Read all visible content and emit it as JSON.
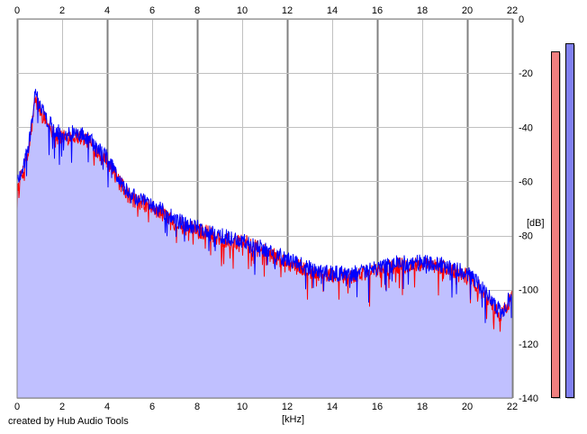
{
  "chart_data": {
    "type": "area",
    "title": "",
    "xlabel": "[kHz]",
    "ylabel": "[dB]",
    "xlim": [
      0,
      22
    ],
    "ylim": [
      -140,
      0
    ],
    "x_ticks": [
      "0",
      "2",
      "4",
      "6",
      "8",
      "10",
      "12",
      "14",
      "16",
      "18",
      "20",
      "22"
    ],
    "y_ticks": [
      "0",
      "-20",
      "-40",
      "-60",
      "-80",
      "-100",
      "-120",
      "-140"
    ],
    "grid": true,
    "legend": "none",
    "colors": {
      "fill": "#c0c0ff",
      "channel_1": "#ff0000",
      "channel_2": "#0000ff",
      "grid_minor": "#c0c0c0",
      "grid_major": "#808080",
      "level_meter_1": "#f08080",
      "level_meter_2": "#8080f0"
    },
    "series": [
      {
        "x": [
          0,
          0.2,
          0.5,
          0.8,
          1.0,
          1.3,
          1.6,
          2.0,
          2.5,
          3.0,
          3.5,
          4.0,
          4.5,
          5.0,
          5.5,
          6.0,
          6.5,
          7.0,
          7.5,
          8.0,
          8.5,
          9.0,
          9.5,
          10.0,
          11.0,
          12.0,
          13.0,
          14.0,
          15.0,
          16.0,
          17.0,
          18.0,
          19.0,
          20.0,
          20.5,
          21.0,
          21.5,
          22.0
        ],
        "values": [
          -62,
          -58,
          -50,
          -30,
          -33,
          -38,
          -42,
          -44,
          -43,
          -44,
          -48,
          -52,
          -60,
          -66,
          -68,
          -70,
          -72,
          -75,
          -77,
          -78,
          -79,
          -81,
          -82,
          -82,
          -86,
          -90,
          -93,
          -95,
          -95,
          -93,
          -91,
          -91,
          -92,
          -95,
          -99,
          -104,
          -110,
          -102
        ]
      },
      {
        "x": [
          0,
          0.2,
          0.5,
          0.8,
          1.0,
          1.3,
          1.6,
          2.0,
          2.5,
          3.0,
          3.5,
          4.0,
          4.5,
          5.0,
          5.5,
          6.0,
          6.5,
          7.0,
          7.5,
          8.0,
          8.5,
          9.0,
          9.5,
          10.0,
          11.0,
          12.0,
          13.0,
          14.0,
          15.0,
          16.0,
          17.0,
          18.0,
          19.0,
          20.0,
          20.5,
          21.0,
          21.5,
          22.0
        ],
        "values": [
          -60,
          -56,
          -48,
          -28,
          -31,
          -37,
          -40,
          -43,
          -42,
          -43,
          -47,
          -51,
          -59,
          -65,
          -67,
          -69,
          -71,
          -74,
          -76,
          -77,
          -79,
          -80,
          -81,
          -82,
          -85,
          -89,
          -92,
          -94,
          -94,
          -92,
          -90,
          -90,
          -91,
          -94,
          -98,
          -103,
          -109,
          -101
        ]
      }
    ],
    "level_meters": [
      -12,
      -9
    ]
  },
  "footer": {
    "credit": "created by Hub Audio Tools"
  }
}
